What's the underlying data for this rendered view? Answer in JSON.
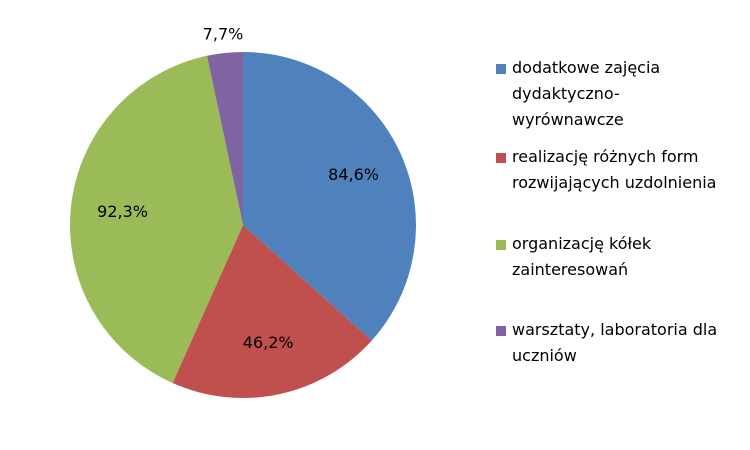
{
  "chart_data": {
    "type": "pie",
    "title": "",
    "legend_position": "right",
    "start_angle_deg": 0,
    "direction": "clockwise",
    "slices": [
      {
        "label": "dodatkowe zajęcia\ndydaktyczno-\nwyrównawcze",
        "value": 84.6,
        "value_label": "84,6%",
        "color": "#4F81BD"
      },
      {
        "label": "realizację różnych form\nrozwijających uzdolnienia",
        "value": 46.2,
        "value_label": "46,2%",
        "color": "#C0504D"
      },
      {
        "label": "organizację kółek\nzainteresowań",
        "value": 92.3,
        "value_label": "92,3%",
        "color": "#9BBB59"
      },
      {
        "label": "warsztaty, laboratoria dla\nuczniów",
        "value": 7.7,
        "value_label": "7,7%",
        "color": "#8064A2"
      }
    ]
  }
}
